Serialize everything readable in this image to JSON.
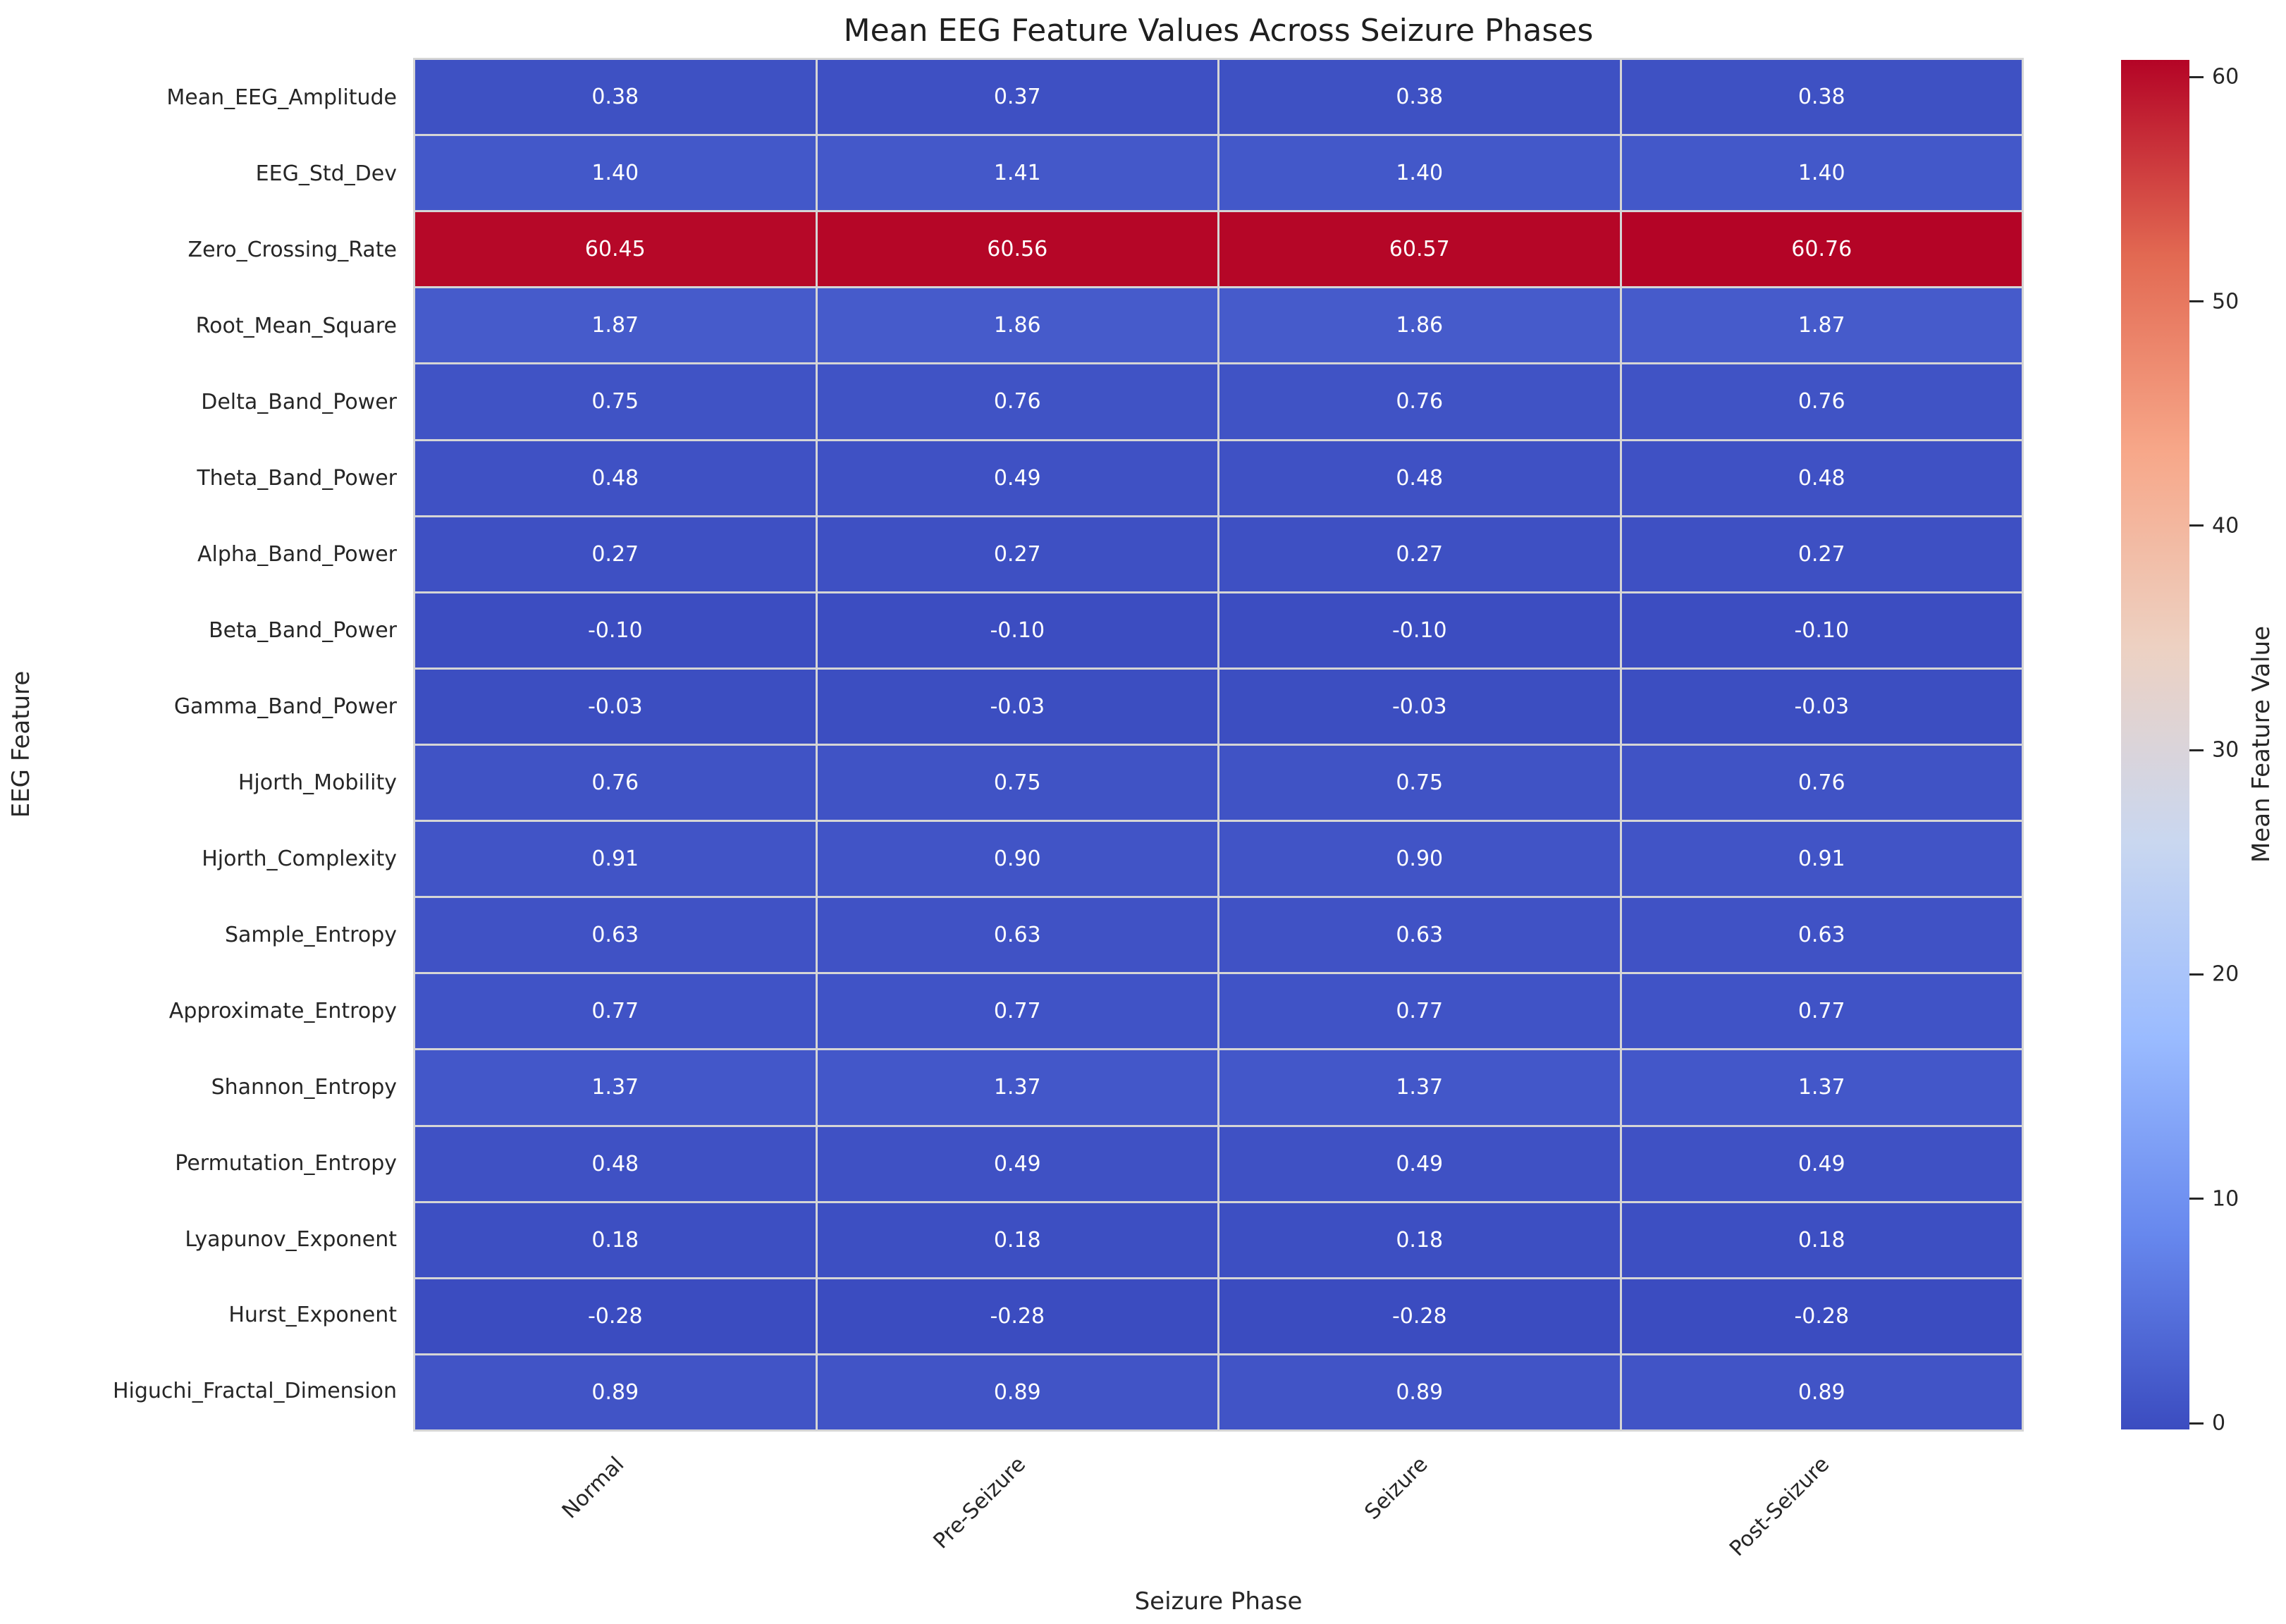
{
  "chart_data": {
    "type": "heatmap",
    "title": "Mean EEG Feature Values Across Seizure Phases",
    "xlabel": "Seizure Phase",
    "ylabel": "EEG Feature",
    "columns": [
      "Normal",
      "Pre-Seizure",
      "Seizure",
      "Post-Seizure"
    ],
    "rows": [
      "Mean_EEG_Amplitude",
      "EEG_Std_Dev",
      "Zero_Crossing_Rate",
      "Root_Mean_Square",
      "Delta_Band_Power",
      "Theta_Band_Power",
      "Alpha_Band_Power",
      "Beta_Band_Power",
      "Gamma_Band_Power",
      "Hjorth_Mobility",
      "Hjorth_Complexity",
      "Sample_Entropy",
      "Approximate_Entropy",
      "Shannon_Entropy",
      "Permutation_Entropy",
      "Lyapunov_Exponent",
      "Hurst_Exponent",
      "Higuchi_Fractal_Dimension"
    ],
    "values": [
      [
        0.38,
        0.37,
        0.38,
        0.38
      ],
      [
        1.4,
        1.41,
        1.4,
        1.4
      ],
      [
        60.45,
        60.56,
        60.57,
        60.76
      ],
      [
        1.87,
        1.86,
        1.86,
        1.87
      ],
      [
        0.75,
        0.76,
        0.76,
        0.76
      ],
      [
        0.48,
        0.49,
        0.48,
        0.48
      ],
      [
        0.27,
        0.27,
        0.27,
        0.27
      ],
      [
        -0.1,
        -0.1,
        -0.1,
        -0.1
      ],
      [
        -0.03,
        -0.03,
        -0.03,
        -0.03
      ],
      [
        0.76,
        0.75,
        0.75,
        0.76
      ],
      [
        0.91,
        0.9,
        0.9,
        0.91
      ],
      [
        0.63,
        0.63,
        0.63,
        0.63
      ],
      [
        0.77,
        0.77,
        0.77,
        0.77
      ],
      [
        1.37,
        1.37,
        1.37,
        1.37
      ],
      [
        0.48,
        0.49,
        0.49,
        0.49
      ],
      [
        0.18,
        0.18,
        0.18,
        0.18
      ],
      [
        -0.28,
        -0.28,
        -0.28,
        -0.28
      ],
      [
        0.89,
        0.89,
        0.89,
        0.89
      ]
    ],
    "value_format_decimals": 2,
    "annotation_text_color": "#ffffff",
    "grid_line_color": "#d5d5d5",
    "colorbar": {
      "label": "Mean Feature Value",
      "ticks": [
        0,
        10,
        20,
        30,
        40,
        50,
        60
      ],
      "vmin": -0.28,
      "vmax": 60.76,
      "colormap": "coolwarm",
      "colormap_stops": [
        "#3b4cc0",
        "#6788ee",
        "#9abbff",
        "#c9d7f0",
        "#edd1c2",
        "#f7a789",
        "#e26952",
        "#b40426"
      ]
    },
    "legend_position": "right",
    "grid": false
  }
}
